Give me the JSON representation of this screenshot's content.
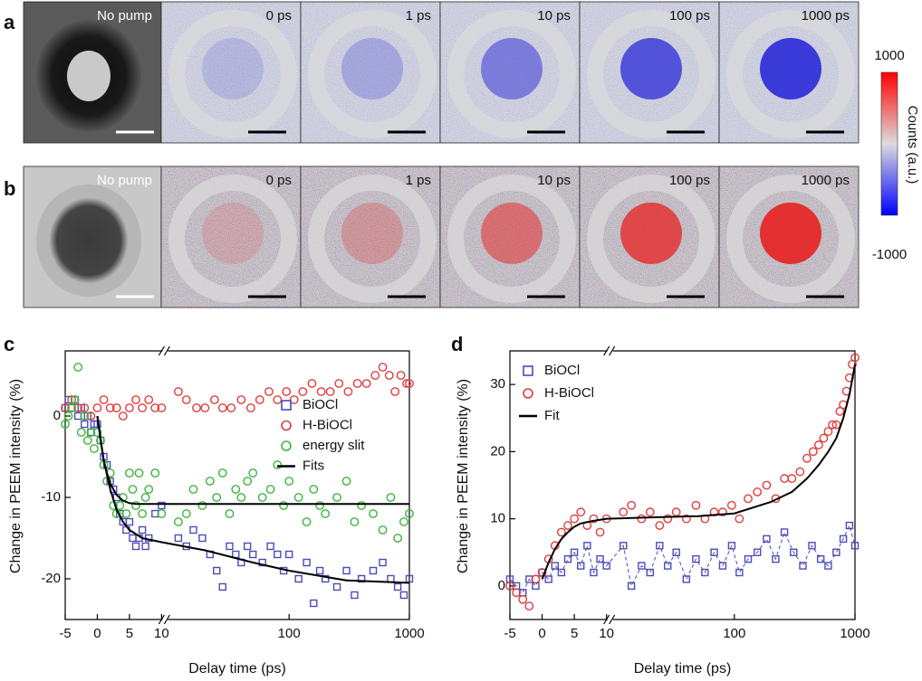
{
  "panel_a": {
    "letter": "a",
    "frames": [
      "No pump",
      "0 ps",
      "1 ps",
      "10 ps",
      "100 ps",
      "1000 ps"
    ]
  },
  "panel_b": {
    "letter": "b",
    "frames": [
      "No pump",
      "0 ps",
      "1 ps",
      "10 ps",
      "100 ps",
      "1000 ps"
    ]
  },
  "colorbar": {
    "ticks": [
      1000,
      -1000
    ],
    "label": "Counts (a.u.)"
  },
  "chart_data": [
    {
      "type": "scatter",
      "letter": "c",
      "xlabel": "Delay time (ps)",
      "ylabel": "Change in PEEM intensity (%)",
      "xlim": [
        -5,
        1000
      ],
      "xbreak": 10,
      "xticks": [
        -5,
        0,
        5,
        10,
        100,
        1000
      ],
      "xscale_after_break": "log",
      "ylim": [
        -25,
        8
      ],
      "yticks": [
        -20,
        -10,
        0
      ],
      "legend": "center right",
      "series": [
        {
          "name": "BiOCl",
          "color": "#4b4bb8",
          "marker": "square",
          "x": [
            -5,
            -4.5,
            -4,
            -3.5,
            -3,
            -2.5,
            -2,
            -1.5,
            -1,
            -0.5,
            0,
            0.5,
            1,
            1.5,
            2,
            2.5,
            3,
            3.5,
            4,
            4.5,
            5,
            5.5,
            6,
            6.5,
            7,
            7.5,
            8,
            9,
            10,
            12,
            14,
            16,
            19,
            22,
            25,
            28,
            32,
            36,
            40,
            45,
            50,
            60,
            70,
            80,
            90,
            100,
            120,
            140,
            160,
            180,
            200,
            250,
            300,
            350,
            400,
            500,
            600,
            700,
            800,
            900,
            1000
          ],
          "values": [
            1,
            2,
            1,
            2,
            0,
            1,
            -1,
            0,
            -2,
            -1,
            -1,
            -3,
            -5,
            -6,
            -8,
            -9,
            -10,
            -12,
            -13,
            -14,
            -13,
            -15,
            -16,
            -15,
            -14,
            -16,
            -15,
            -12,
            -11,
            -15,
            -16,
            -14,
            -15,
            -17,
            -19,
            -21,
            -16,
            -17,
            -18,
            -16,
            -17,
            -18,
            -16,
            -17,
            -19,
            -17,
            -20,
            -18,
            -23,
            -19,
            -20,
            -21,
            -19,
            -22,
            -20,
            -19,
            -18,
            -20,
            -21,
            -22,
            -20
          ]
        },
        {
          "name": "H-BiOCl",
          "color": "#e03c3c",
          "marker": "circle",
          "x": [
            -5,
            -4,
            -3,
            -2,
            -1,
            0,
            1,
            2,
            3,
            4,
            5,
            6,
            7,
            8,
            9,
            10,
            12,
            14,
            17,
            20,
            24,
            28,
            33,
            40,
            48,
            57,
            68,
            80,
            95,
            110,
            130,
            155,
            185,
            220,
            260,
            310,
            370,
            440,
            520,
            600,
            680,
            760,
            850,
            950,
            1000
          ],
          "values": [
            1,
            2,
            1,
            1,
            0,
            1,
            2,
            1,
            1,
            0,
            1,
            2,
            1,
            2,
            1,
            1,
            3,
            2,
            1,
            1,
            2,
            1,
            1,
            2,
            1,
            2,
            3,
            2,
            3,
            2,
            3,
            4,
            3,
            3,
            4,
            3,
            4,
            4,
            5,
            6,
            5,
            3,
            5,
            4,
            4
          ]
        },
        {
          "name": "energy slit",
          "color": "#3cb43c",
          "marker": "circle",
          "x": [
            -5,
            -4.5,
            -4,
            -3.5,
            -3,
            -2.5,
            -2,
            -1.5,
            -1,
            -0.5,
            0,
            0.5,
            1,
            1.5,
            2,
            2.5,
            3,
            3.5,
            4,
            4.5,
            5,
            5.5,
            6,
            6.5,
            7,
            7.5,
            8,
            9,
            10,
            12,
            14,
            16,
            19,
            22,
            25,
            28,
            32,
            36,
            40,
            45,
            50,
            60,
            70,
            80,
            90,
            100,
            120,
            140,
            160,
            180,
            200,
            250,
            300,
            350,
            400,
            500,
            600,
            700,
            800,
            900,
            1000
          ],
          "values": [
            -1,
            0,
            1,
            2,
            6,
            -2,
            0,
            -3,
            -2,
            -4,
            -2,
            -3,
            -6,
            -8,
            -7,
            -11,
            -12,
            -11,
            -10,
            -12,
            -7,
            -9,
            -11,
            -7,
            -12,
            -10,
            -9,
            -7,
            -12,
            -13,
            -12,
            -9,
            -11,
            -8,
            -10,
            -7,
            -12,
            -9,
            -10,
            -8,
            -7,
            -10,
            -9,
            -6,
            -11,
            -8,
            -10,
            -13,
            -9,
            -11,
            -12,
            -10,
            -8,
            -13,
            -11,
            -12,
            -14,
            -10,
            -15,
            -13,
            -12
          ]
        },
        {
          "name": "Fits",
          "color": "#000000",
          "marker": "line",
          "curves": [
            {
              "x": [
                0,
                0.5,
                1,
                1.5,
                2,
                3,
                4,
                5,
                6,
                8,
                10,
                30,
                100,
                1000
              ],
              "values": [
                0,
                -3,
                -5.5,
                -7,
                -8.3,
                -9.7,
                -10.4,
                -10.7,
                -10.8,
                -10.8,
                -10.8,
                -10.8,
                -10.8,
                -10.8
              ]
            },
            {
              "x": [
                0,
                1,
                2,
                3,
                4,
                5,
                7,
                10,
                20,
                50,
                100,
                300,
                1000
              ],
              "values": [
                0,
                -5.5,
                -9,
                -11.5,
                -13,
                -14,
                -15,
                -15.5,
                -16.5,
                -18,
                -19,
                -20.2,
                -20.5
              ]
            }
          ]
        }
      ]
    },
    {
      "type": "scatter",
      "letter": "d",
      "xlabel": "Delay time (ps)",
      "ylabel": "Change in PEEM intensity (%)",
      "xlim": [
        -5,
        1000
      ],
      "xbreak": 10,
      "xticks": [
        -5,
        0,
        5,
        10,
        100,
        1000
      ],
      "xscale_after_break": "log",
      "ylim": [
        -5,
        35
      ],
      "yticks": [
        0,
        10,
        20,
        30
      ],
      "legend": "upper left",
      "series": [
        {
          "name": "BiOCl",
          "color": "#4b4bb8",
          "marker": "square",
          "line_style": "dashed",
          "x": [
            -5,
            -4,
            -3,
            -2,
            -1,
            0,
            1,
            2,
            3,
            4,
            5,
            6,
            7,
            8,
            9,
            10,
            12,
            14,
            17,
            20,
            24,
            28,
            33,
            40,
            48,
            57,
            68,
            80,
            95,
            110,
            130,
            155,
            185,
            220,
            260,
            310,
            370,
            440,
            520,
            600,
            700,
            800,
            900,
            1000
          ],
          "values": [
            1,
            0,
            -1,
            1,
            0,
            2,
            1,
            3,
            2,
            4,
            5,
            3,
            6,
            2,
            4,
            3,
            6,
            0,
            3,
            2,
            6,
            3,
            5,
            1,
            4,
            2,
            5,
            3,
            6,
            2,
            4,
            5,
            7,
            4,
            8,
            5,
            3,
            6,
            4,
            3,
            5,
            7,
            9,
            6
          ]
        },
        {
          "name": "H-BiOCl",
          "color": "#e03c3c",
          "marker": "circle",
          "x": [
            -5,
            -4,
            -3,
            -2,
            -1,
            0,
            1,
            2,
            3,
            4,
            5,
            6,
            7,
            8,
            9,
            10,
            12,
            14,
            17,
            20,
            24,
            28,
            33,
            40,
            48,
            57,
            68,
            80,
            95,
            110,
            130,
            155,
            185,
            220,
            260,
            300,
            350,
            400,
            450,
            500,
            550,
            600,
            650,
            700,
            750,
            800,
            850,
            900,
            950,
            1000
          ],
          "values": [
            0,
            -1,
            -2,
            -3,
            1,
            2,
            4,
            6,
            8,
            9,
            10,
            11,
            9,
            10,
            8,
            10,
            11,
            12,
            10,
            11,
            9,
            10,
            11,
            10,
            12,
            10,
            11,
            11,
            12,
            10,
            13,
            14,
            15,
            13,
            16,
            16,
            17,
            19,
            20,
            21,
            22,
            23,
            24,
            24,
            26,
            27,
            29,
            31,
            33,
            34
          ]
        },
        {
          "name": "Fit",
          "color": "#000000",
          "marker": "line",
          "curves": [
            {
              "x": [
                0,
                1,
                2,
                3,
                4,
                5,
                6,
                8,
                10,
                20,
                50,
                100,
                200,
                300,
                400,
                500,
                600,
                700,
                800,
                900,
                1000
              ],
              "values": [
                1,
                3.5,
                5.5,
                7,
                8,
                8.8,
                9.3,
                9.7,
                10,
                10.2,
                10.4,
                10.8,
                12.5,
                14,
                16,
                18,
                20,
                22,
                25,
                28.5,
                33
              ]
            }
          ]
        }
      ]
    }
  ]
}
